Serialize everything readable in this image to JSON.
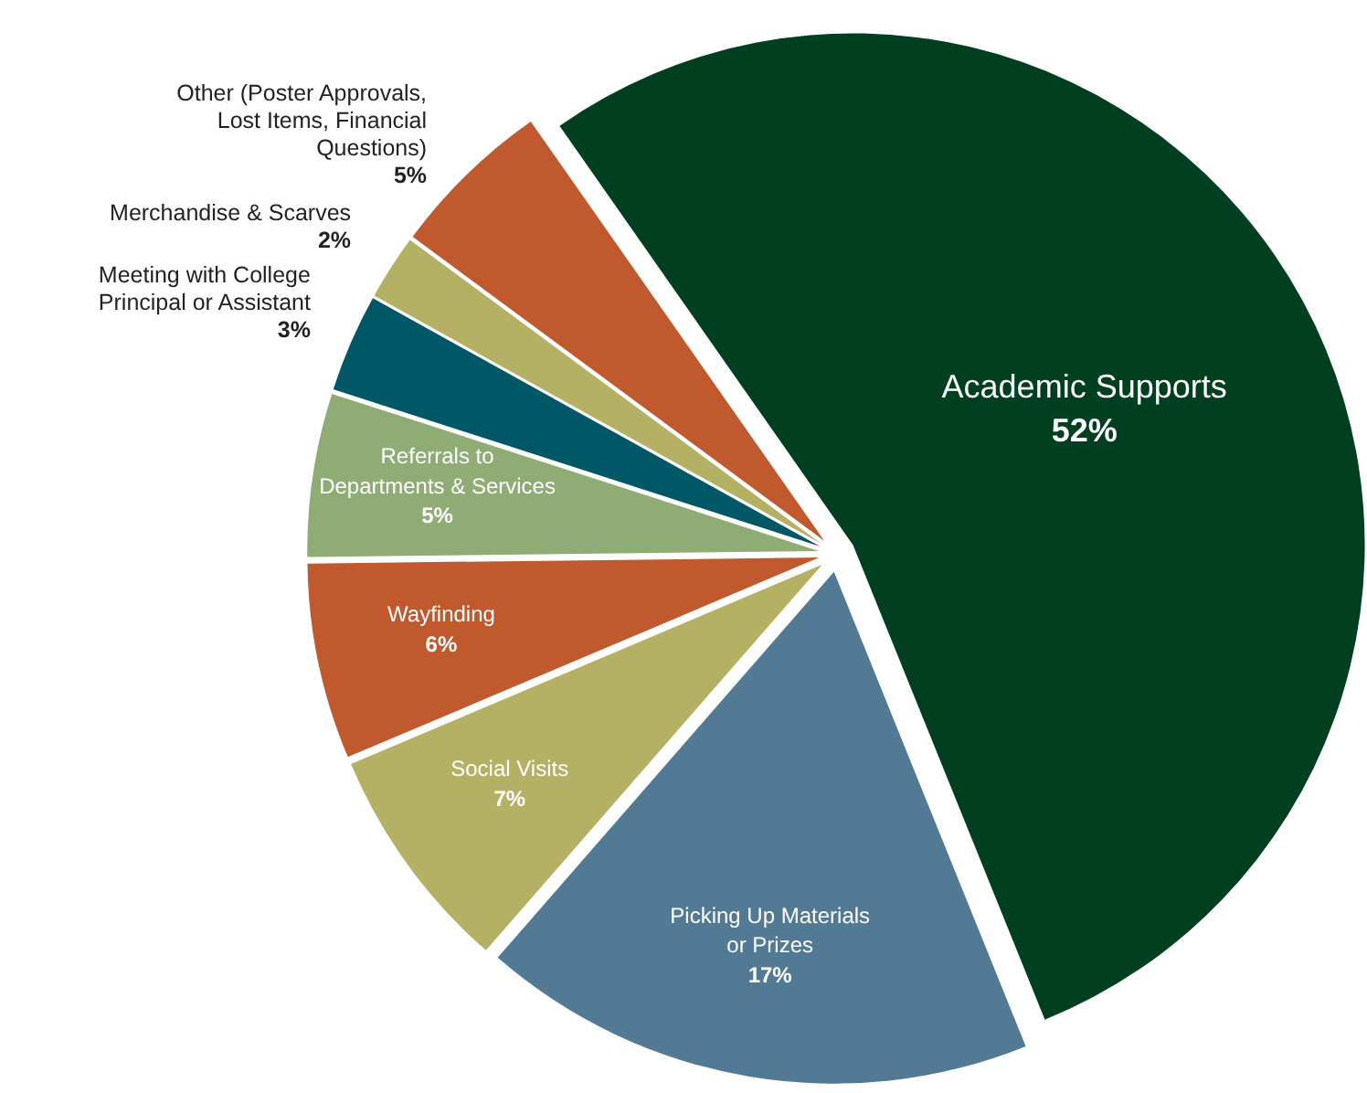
{
  "chart_data": {
    "type": "pie",
    "categories": [
      "Academic Supports",
      "Picking Up Materials or Prizes",
      "Social Visits",
      "Wayfinding",
      "Referrals to Departments & Services",
      "Meeting with College Principal or Assistant",
      "Merchandise & Scarves",
      "Other (Poster Approvals, Lost Items, Financial Questions)"
    ],
    "values": [
      52,
      17,
      7,
      6,
      5,
      3,
      2,
      5
    ],
    "value_labels": [
      "52%",
      "17%",
      "7%",
      "6%",
      "5%",
      "3%",
      "2%",
      "5%"
    ],
    "colors": [
      "#003f20",
      "#527a94",
      "#b5b164",
      "#c05a2e",
      "#8fac74",
      "#005866",
      "#b5b164",
      "#c05a2e"
    ]
  }
}
